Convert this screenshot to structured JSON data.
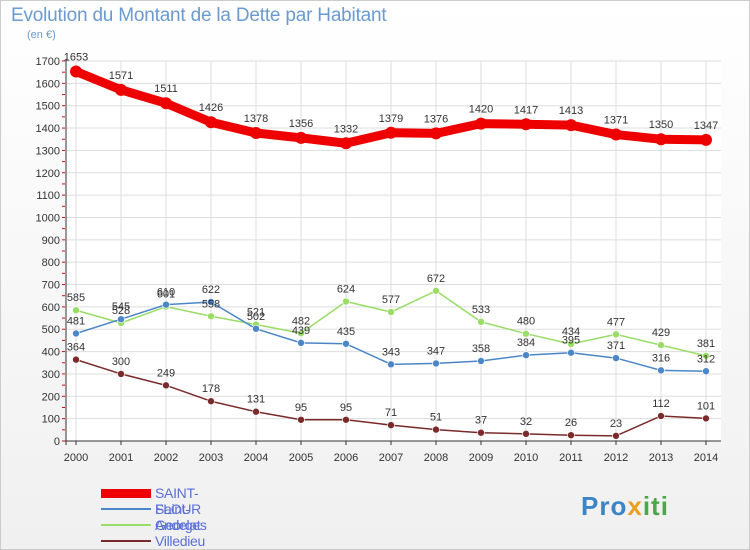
{
  "chart_data": {
    "type": "line",
    "title": "Evolution du Montant de la Dette par Habitant",
    "subtitle": "(en €)",
    "x": [
      "2000",
      "2001",
      "2002",
      "2003",
      "2004",
      "2005",
      "2006",
      "2007",
      "2008",
      "2009",
      "2010",
      "2011",
      "2012",
      "2013",
      "2014"
    ],
    "ylim": [
      0,
      1700
    ],
    "yticks": [
      0,
      100,
      200,
      300,
      400,
      500,
      600,
      700,
      800,
      900,
      1000,
      1100,
      1200,
      1300,
      1400,
      1500,
      1600,
      1700
    ],
    "grid": true,
    "legend_position": "bottom-left",
    "series": [
      {
        "name": "SAINT-FLOUR",
        "color": "#ee0000",
        "values": [
          1653,
          1571,
          1511,
          1426,
          1378,
          1356,
          1332,
          1379,
          1376,
          1420,
          1417,
          1413,
          1371,
          1350,
          1347
        ]
      },
      {
        "name": "Saint-Georges",
        "color": "#4a86c8",
        "values": [
          481,
          545,
          610,
          622,
          502,
          439,
          435,
          343,
          347,
          358,
          384,
          395,
          371,
          316,
          312
        ]
      },
      {
        "name": "Andelat",
        "color": "#99dd66",
        "values": [
          585,
          528,
          601,
          558,
          521,
          482,
          624,
          577,
          672,
          533,
          480,
          434,
          477,
          429,
          381
        ]
      },
      {
        "name": "Villedieu",
        "color": "#7a2a2a",
        "values": [
          364,
          300,
          249,
          178,
          131,
          95,
          95,
          71,
          51,
          37,
          32,
          26,
          23,
          112,
          101
        ]
      }
    ]
  },
  "brand": {
    "part1": "Pro",
    "part2": "x",
    "part3": "iti"
  }
}
